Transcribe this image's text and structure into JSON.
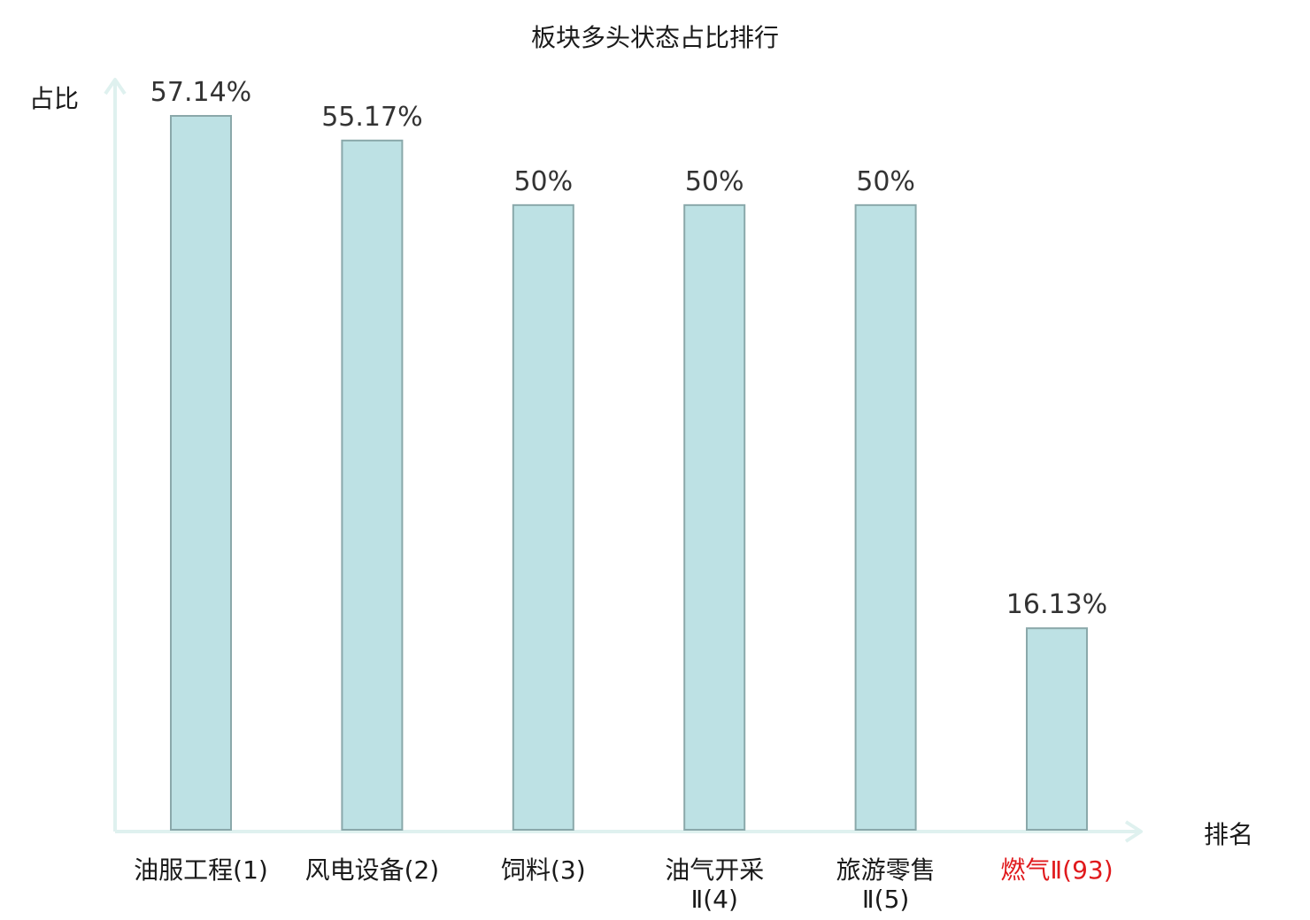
{
  "chart_data": {
    "type": "bar",
    "title": "板块多头状态占比排行",
    "ylabel": "占比",
    "xlabel": "排名",
    "ylim": [
      0,
      60
    ],
    "grid": false,
    "categories": [
      {
        "name": "油服工程",
        "rank": "(1)",
        "lines": [
          "油服工程(1)"
        ],
        "highlight": false
      },
      {
        "name": "风电设备",
        "rank": "(2)",
        "lines": [
          "风电设备(2)"
        ],
        "highlight": false
      },
      {
        "name": "饲料",
        "rank": "(3)",
        "lines": [
          "饲料(3)"
        ],
        "highlight": false
      },
      {
        "name": "油气开采Ⅱ",
        "rank": "(4)",
        "lines": [
          "油气开采",
          "Ⅱ(4)"
        ],
        "highlight": false
      },
      {
        "name": "旅游零售Ⅱ",
        "rank": "(5)",
        "lines": [
          "旅游零售",
          "Ⅱ(5)"
        ],
        "highlight": false
      },
      {
        "name": "燃气Ⅱ",
        "rank": "(93)",
        "lines": [
          "燃气Ⅱ(93)"
        ],
        "highlight": true
      }
    ],
    "values": [
      57.14,
      55.17,
      50,
      50,
      50,
      16.13
    ],
    "value_labels": [
      "57.14%",
      "55.17%",
      "50%",
      "50%",
      "50%",
      "16.13%"
    ],
    "colors": {
      "bar_fill": "#bde1e4",
      "bar_stroke": "#8aa8aa",
      "axis": "#dff1ef",
      "highlight_text": "#e0191c"
    }
  }
}
